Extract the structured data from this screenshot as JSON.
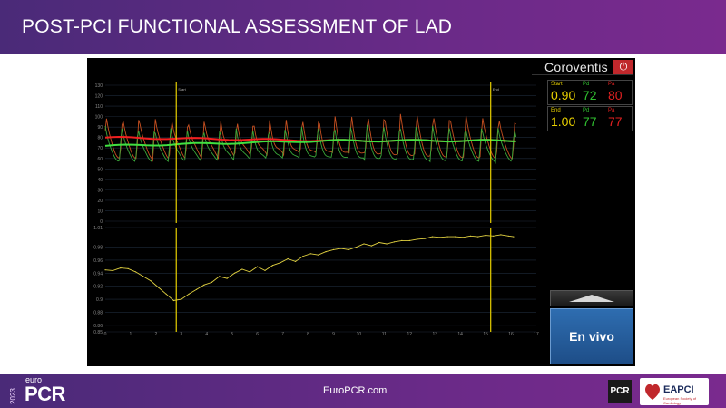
{
  "header": {
    "title": "POST-PCI FUNCTIONAL ASSESSMENT OF LAD"
  },
  "monitor": {
    "brand": "Coroventis",
    "nav_label": "",
    "live_button_label": "En vivo",
    "readings": [
      {
        "label": "Start",
        "ratio": "0.90",
        "pd_label": "Pd",
        "pd": "72",
        "pa_label": "Pa",
        "pa": "80"
      },
      {
        "label": "End",
        "ratio": "1.00",
        "pd_label": "Pd",
        "pd": "77",
        "pa_label": "Pa",
        "pa": "77"
      }
    ],
    "markers": [
      "Start",
      "End"
    ]
  },
  "chart_data": [
    {
      "type": "line",
      "title": "",
      "series": [
        {
          "color": "#e02020",
          "values": []
        },
        {
          "color": "#30c030",
          "values": []
        }
      ],
      "x_ticks": [
        "0",
        "1",
        "2",
        "3",
        "4",
        "5",
        "6",
        "7",
        "8",
        "9",
        "10",
        "11",
        "12",
        "13",
        "14",
        "15",
        "16",
        "17"
      ],
      "y_ticks": [
        "0",
        "10",
        "20",
        "30",
        "40",
        "50",
        "60",
        "70",
        "80",
        "90",
        "100",
        "110",
        "120",
        "130"
      ],
      "ylim": [
        0,
        130
      ],
      "xlim": [
        0,
        17
      ],
      "markers": [
        {
          "label": "Start",
          "x": 2.8
        },
        {
          "label": "End",
          "x": 15.2
        }
      ]
    },
    {
      "type": "line",
      "title": "",
      "x": [
        0.0,
        0.3,
        0.6,
        0.9,
        1.2,
        1.5,
        1.8,
        2.1,
        2.4,
        2.7,
        3.0,
        3.3,
        3.6,
        3.9,
        4.2,
        4.5,
        4.8,
        5.1,
        5.4,
        5.7,
        6.0,
        6.3,
        6.6,
        6.9,
        7.2,
        7.5,
        7.8,
        8.1,
        8.4,
        8.7,
        9.0,
        9.3,
        9.6,
        9.9,
        10.2,
        10.5,
        10.8,
        11.1,
        11.4,
        11.7,
        12.0,
        12.3,
        12.6,
        12.9,
        13.2,
        13.5,
        13.8,
        14.1,
        14.4,
        14.7,
        15.0,
        15.3,
        15.6,
        15.9,
        16.1
      ],
      "series": [
        {
          "color": "#e0d040",
          "values": [
            0.945,
            0.944,
            0.948,
            0.947,
            0.942,
            0.935,
            0.928,
            0.918,
            0.908,
            0.898,
            0.9,
            0.908,
            0.915,
            0.922,
            0.926,
            0.935,
            0.932,
            0.94,
            0.946,
            0.942,
            0.95,
            0.944,
            0.952,
            0.956,
            0.962,
            0.958,
            0.966,
            0.97,
            0.968,
            0.973,
            0.976,
            0.978,
            0.976,
            0.98,
            0.985,
            0.982,
            0.987,
            0.985,
            0.988,
            0.99,
            0.99,
            0.992,
            0.993,
            0.996,
            0.995,
            0.996,
            0.996,
            0.995,
            0.997,
            0.996,
            0.998,
            0.997,
            0.999,
            0.997,
            0.996
          ]
        }
      ],
      "x_ticks": [
        "0",
        "1",
        "2",
        "3",
        "4",
        "5",
        "6",
        "7",
        "8",
        "9",
        "10",
        "11",
        "12",
        "13",
        "14",
        "15",
        "16",
        "17"
      ],
      "y_ticks": [
        "0.85",
        "0.86",
        "0.88",
        "0.9",
        "0.92",
        "0.94",
        "0.96",
        "0.98",
        "1.01"
      ],
      "ylim": [
        0.85,
        1.01
      ],
      "xlim": [
        0,
        17
      ]
    }
  ],
  "footer": {
    "url": "EuroPCR.com",
    "logo_year": "2023",
    "logo_euro": "euro",
    "logo_pcr": "PCR",
    "pcr_badge": "PCR",
    "eapci": "EAPCI",
    "eapci_sub": "European Society of Cardiology"
  }
}
